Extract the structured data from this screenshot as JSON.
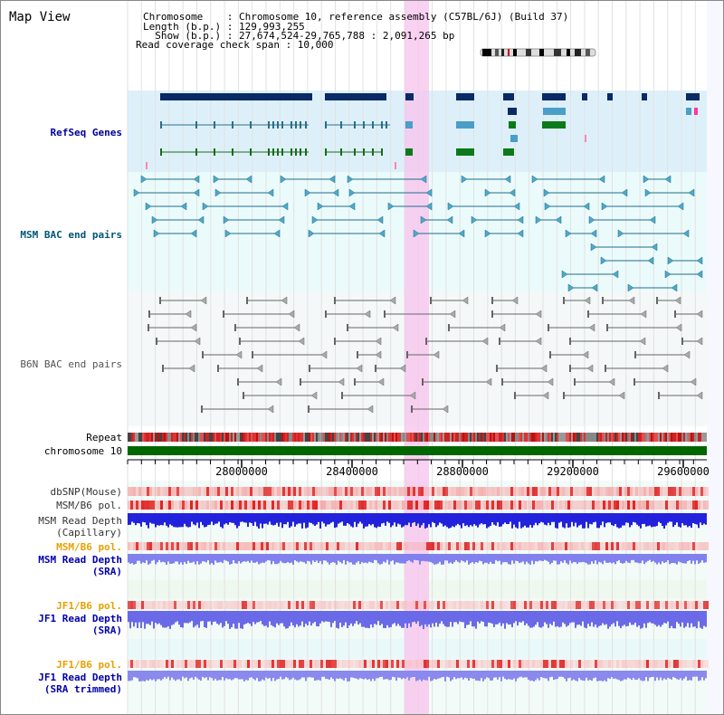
{
  "page": {
    "title": "Map View"
  },
  "header": {
    "chromosome_line": "Chromosome    : Chromosome 10, reference assembly (C57BL/6J) (Build 37)",
    "length_line": "Length (b.p.) : 129,993,255",
    "show_line": "  Show (b.p.) : 27,674,524-29,765,788 : 2,091,265 bp",
    "coverage_line": "Read coverage check span : 10,000"
  },
  "tracks": {
    "refseq": "RefSeq Genes",
    "msm_bac": "MSM BAC end pairs",
    "b6n_bac": "B6N BAC end pairs",
    "repeat": "Repeat",
    "chromosome": "chromosome 10",
    "dbsnp": "dbSNP(Mouse)",
    "msm_b6_pol_1": "MSM/B6 pol.",
    "msm_depth_cap_1": "MSM Read Depth",
    "msm_depth_cap_2": "(Capillary)",
    "msm_b6_pol_2": "MSM/B6 pol.",
    "msm_depth_sra_1": "MSM Read Depth",
    "msm_depth_sra_2": "(SRA)",
    "jf1_b6_pol_1": "JF1/B6 pol.",
    "jf1_depth_sra_1": "JF1 Read Depth",
    "jf1_depth_sra_2": "(SRA)",
    "jf1_b6_pol_2": "JF1/B6 pol.",
    "jf1_depth_trim_1": "JF1 Read Depth",
    "jf1_depth_trim_2": "(SRA trimmed)"
  },
  "axis": {
    "ticks": [
      "28000000",
      "28400000",
      "28800000",
      "29200000",
      "29600000"
    ]
  },
  "colors": {
    "refseq_bg": "#ddf0fa",
    "bac_bg": "#ebfbfb",
    "b6n_bg": "#f4f8f8",
    "highlight": "#f7c6ee",
    "refseq_label": "#000099",
    "msm_label": "#005577",
    "b6n_label": "#555555",
    "pol_label": "#e8a000",
    "depth_label": "#0000aa",
    "chromosome_bar": "#006600"
  }
}
